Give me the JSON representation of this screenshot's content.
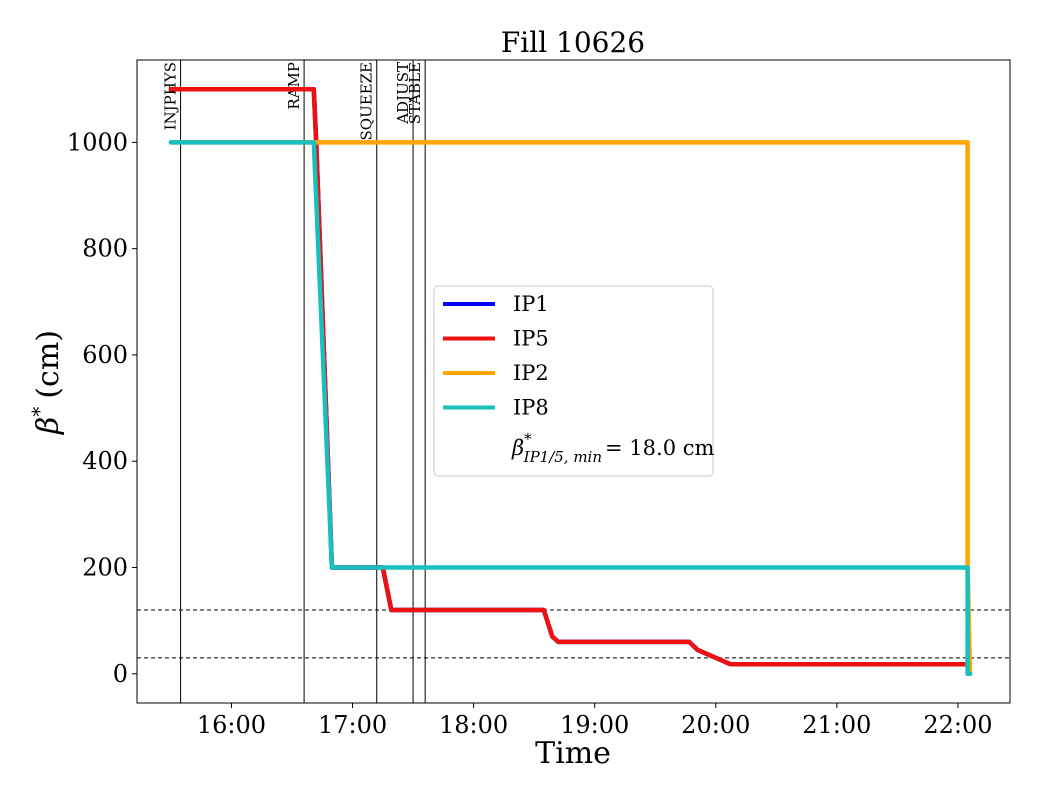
{
  "chart_data": {
    "type": "line",
    "title": "Fill 10626",
    "xlabel": "Time",
    "ylabel_symbol": "β",
    "ylabel_sup": "*",
    "ylabel_unit": "(cm)",
    "x_unit": "hours",
    "xlim": [
      15.22,
      22.43
    ],
    "ylim": [
      -55,
      1155
    ],
    "xticks": [
      {
        "value": 16,
        "label": "16:00"
      },
      {
        "value": 17,
        "label": "17:00"
      },
      {
        "value": 18,
        "label": "18:00"
      },
      {
        "value": 19,
        "label": "19:00"
      },
      {
        "value": 20,
        "label": "20:00"
      },
      {
        "value": 21,
        "label": "21:00"
      },
      {
        "value": 22,
        "label": "22:00"
      }
    ],
    "yticks": [
      {
        "value": 0,
        "label": "0"
      },
      {
        "value": 200,
        "label": "200"
      },
      {
        "value": 400,
        "label": "400"
      },
      {
        "value": 600,
        "label": "600"
      },
      {
        "value": 800,
        "label": "800"
      },
      {
        "value": 1000,
        "label": "1000"
      }
    ],
    "phases": [
      {
        "label": "INJPHYS",
        "x": 15.58
      },
      {
        "label": "RAMP",
        "x": 16.6
      },
      {
        "label": "SQUEEZE",
        "x": 17.2
      },
      {
        "label": "ADJUST",
        "x": 17.5
      },
      {
        "label": "STABLE",
        "x": 17.6
      }
    ],
    "hlines": [
      {
        "y": 120,
        "style": "dashed"
      },
      {
        "y": 30,
        "style": "dashed"
      }
    ],
    "grid": false,
    "legend_position": "center-right",
    "series": [
      {
        "name": "IP1",
        "color": "#0000ff",
        "x": [
          15.5,
          16.68,
          16.7,
          16.83,
          17.25,
          17.32,
          18.58,
          18.65,
          18.7,
          19.78,
          19.85,
          20.0,
          20.12,
          22.08,
          22.1
        ],
        "y": [
          1100,
          1100,
          1000,
          200,
          200,
          120,
          120,
          70,
          60,
          60,
          45,
          30,
          18,
          18,
          0
        ]
      },
      {
        "name": "IP5",
        "color": "#ee1111",
        "x": [
          15.5,
          16.68,
          16.7,
          16.83,
          17.25,
          17.32,
          18.58,
          18.65,
          18.7,
          19.78,
          19.85,
          20.0,
          20.12,
          22.08,
          22.1
        ],
        "y": [
          1100,
          1100,
          1000,
          200,
          200,
          120,
          120,
          70,
          60,
          60,
          45,
          30,
          18,
          18,
          0
        ]
      },
      {
        "name": "IP2",
        "color": "#ffa500",
        "x": [
          15.5,
          16.68,
          16.7,
          22.08,
          22.08,
          22.1
        ],
        "y": [
          1000,
          1000,
          1000,
          1000,
          200,
          0
        ]
      },
      {
        "name": "IP8",
        "color": "#17bfbf",
        "x": [
          15.5,
          16.68,
          16.83,
          22.08,
          22.08,
          22.1
        ],
        "y": [
          1000,
          1000,
          200,
          200,
          0,
          0
        ]
      }
    ],
    "annotation": {
      "symbol": "β",
      "sup": "*",
      "sub": "IP1/5, min",
      "value_text": "= 18.0 cm"
    }
  }
}
